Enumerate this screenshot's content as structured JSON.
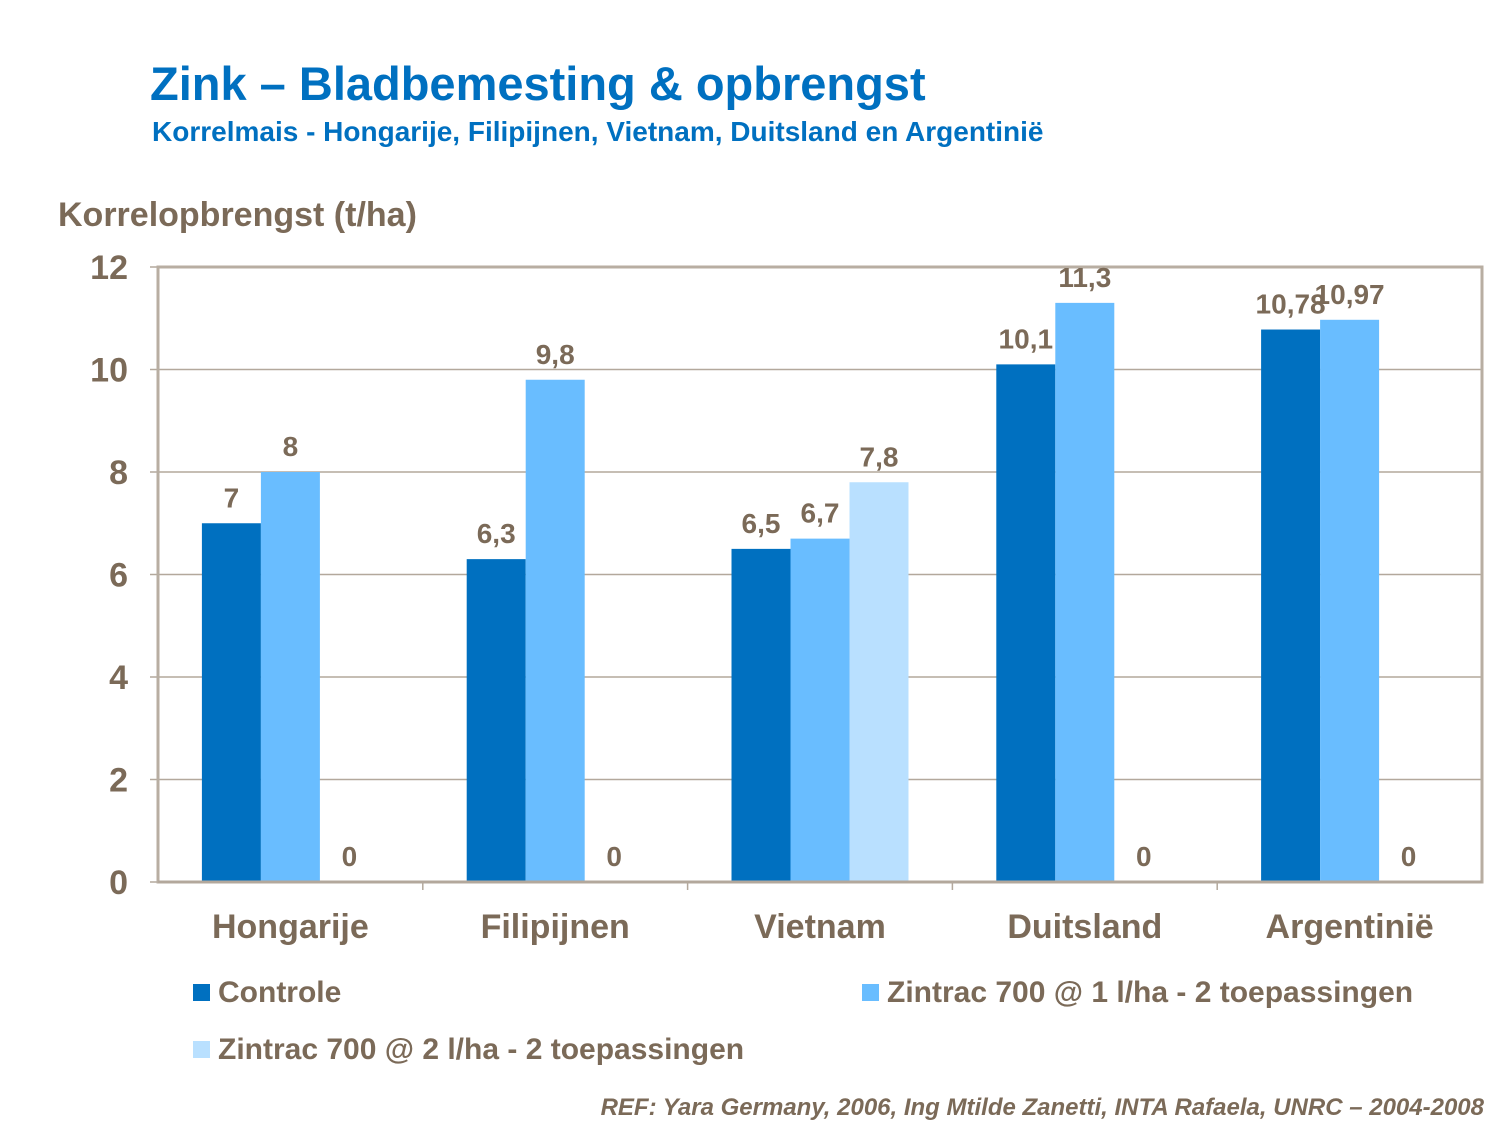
{
  "title": "Zink – Bladbemesting & opbrengst",
  "subtitle": "Korrelmais - Hongarije, Filipijnen, Vietnam, Duitsland en Argentinië",
  "reference": "REF: Yara Germany, 2006, Ing Mtilde Zanetti, INTA Rafaela, UNRC – 2004-2008",
  "chart_data": {
    "type": "bar",
    "ylabel": "Korrelopbrengst (t/ha)",
    "xlabel": "",
    "ylim": [
      0,
      12
    ],
    "yticks": [
      0,
      2,
      4,
      6,
      8,
      10,
      12
    ],
    "grid": true,
    "legend_position": "bottom",
    "categories": [
      "Hongarije",
      "Filipijnen",
      "Vietnam",
      "Duitsland",
      "Argentinië"
    ],
    "series": [
      {
        "name": "Controle",
        "color": "#0070C0",
        "values": [
          7,
          6.3,
          6.5,
          10.1,
          10.78
        ],
        "labels": [
          "7",
          "6,3",
          "6,5",
          "10,1",
          "10,78"
        ]
      },
      {
        "name": "Zintrac 700 @ 1 l/ha - 2 toepassingen",
        "color": "#69BDFF",
        "values": [
          8,
          9.8,
          6.7,
          11.3,
          10.97
        ],
        "labels": [
          "8",
          "9,8",
          "6,7",
          "11,3",
          "10,97"
        ]
      },
      {
        "name": "Zintrac 700 @ 2 l/ha - 2 toepassingen",
        "color": "#B9E0FF",
        "values": [
          0,
          0,
          7.8,
          0,
          0
        ],
        "labels": [
          "0",
          "0",
          "7,8",
          "0",
          "0"
        ]
      }
    ]
  }
}
